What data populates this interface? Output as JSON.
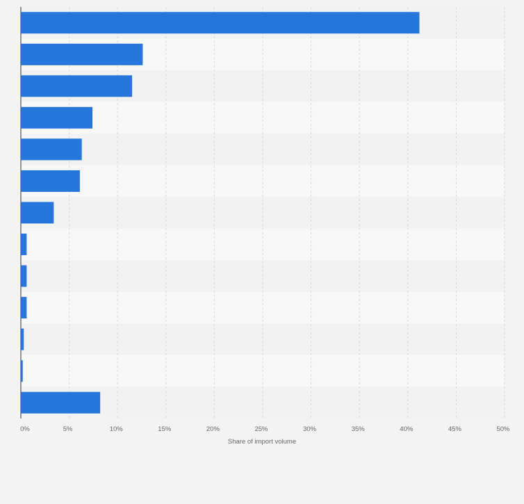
{
  "chart_data": {
    "type": "bar",
    "orientation": "horizontal",
    "categories": [
      "",
      "",
      "",
      "",
      "",
      "",
      "",
      "",
      "",
      "",
      "",
      "",
      ""
    ],
    "values": [
      41.2,
      12.6,
      11.5,
      7.4,
      6.3,
      6.1,
      3.4,
      0.6,
      0.6,
      0.6,
      0.3,
      0.2,
      8.2
    ],
    "xlabel": "Share of import volume",
    "ylabel": "",
    "xlim": [
      0,
      50
    ],
    "xticks": [
      0,
      5,
      10,
      15,
      20,
      25,
      30,
      35,
      40,
      45,
      50
    ],
    "xtick_labels": [
      "0%",
      "5%",
      "10%",
      "15%",
      "20%",
      "25%",
      "30%",
      "35%",
      "40%",
      "45%",
      "50%"
    ],
    "grid": true,
    "bar_color": "#2776dc",
    "band_colors": [
      "#f2f2f2",
      "#f8f8f8"
    ]
  }
}
